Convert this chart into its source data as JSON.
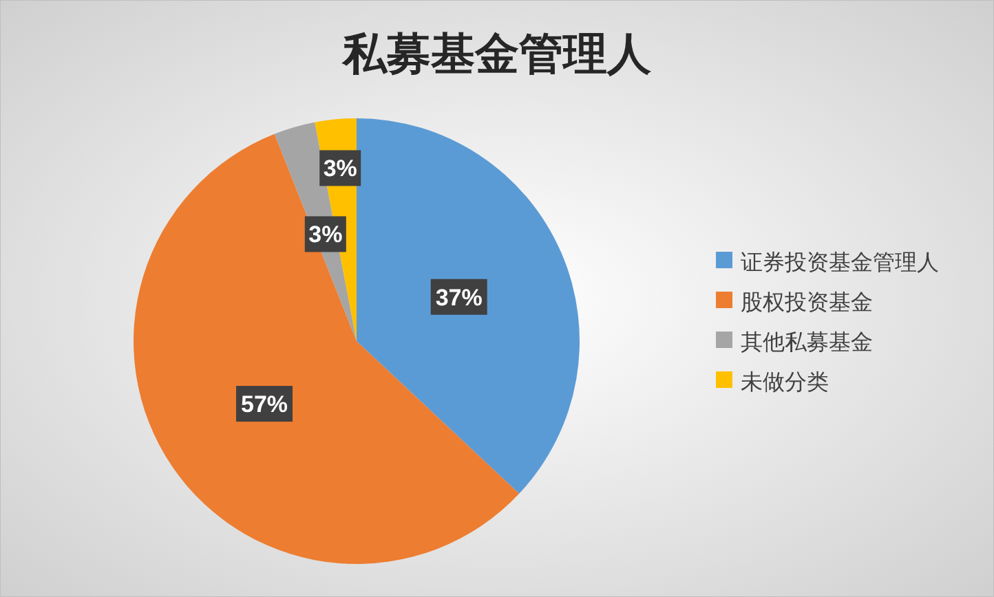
{
  "chart_data": {
    "type": "pie",
    "title": "私募基金管理人",
    "categories": [
      "证券投资基金管理人",
      "股权投资基金",
      "其他私募基金",
      "未做分类"
    ],
    "values": [
      37,
      57,
      3,
      3
    ],
    "colors": [
      "#5b9bd5",
      "#ed7d31",
      "#a5a5a5",
      "#ffc000"
    ],
    "value_labels": [
      "37%",
      "57%",
      "3%",
      "3%"
    ],
    "legend": "right"
  }
}
